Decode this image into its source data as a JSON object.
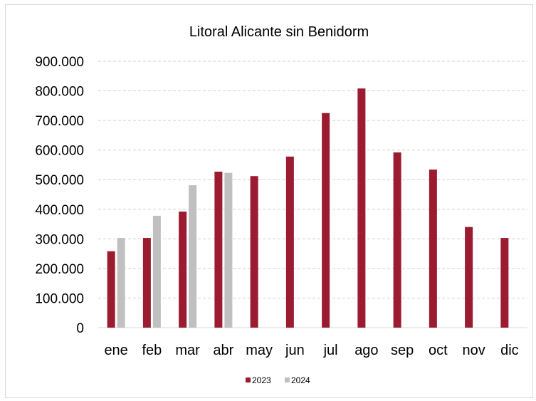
{
  "chart_data": {
    "type": "bar",
    "title": "Litoral Alicante sin Benidorm",
    "categories": [
      "ene",
      "feb",
      "mar",
      "abr",
      "may",
      "jun",
      "jul",
      "ago",
      "sep",
      "oct",
      "nov",
      "dic"
    ],
    "series": [
      {
        "name": "2023",
        "color": "#9b1b30",
        "values": [
          258000,
          303000,
          392000,
          527000,
          512000,
          578000,
          725000,
          808000,
          592000,
          534000,
          340000,
          303000
        ]
      },
      {
        "name": "2024",
        "color": "#c0c0c0",
        "values": [
          303000,
          378000,
          481000,
          523000,
          null,
          null,
          null,
          null,
          null,
          null,
          null,
          null
        ]
      }
    ],
    "yticks": [
      "0",
      "100.000",
      "200.000",
      "300.000",
      "400.000",
      "500.000",
      "600.000",
      "700.000",
      "800.000",
      "900.000"
    ],
    "ylim": [
      0,
      900000
    ],
    "grid": true,
    "legend_position": "bottom"
  }
}
